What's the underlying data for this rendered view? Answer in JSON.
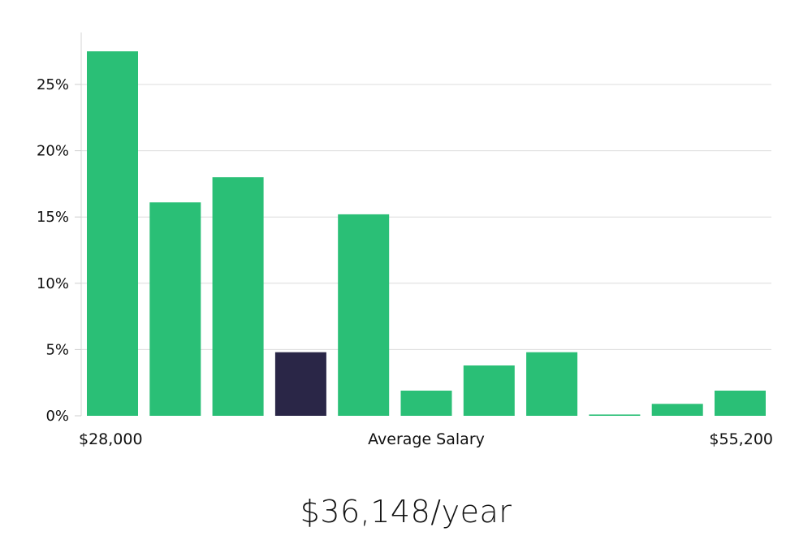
{
  "chart_data": {
    "type": "bar",
    "categories": [
      "1",
      "2",
      "3",
      "4",
      "5",
      "6",
      "7",
      "8",
      "9",
      "10",
      "11"
    ],
    "values": [
      27.5,
      16.1,
      18.0,
      4.8,
      15.2,
      1.9,
      3.8,
      4.8,
      0.1,
      0.9,
      1.9
    ],
    "highlight_index": 3,
    "ylim": [
      0,
      28
    ],
    "yticks": [
      0,
      5,
      10,
      15,
      20,
      25
    ],
    "ytick_suffix": "%",
    "x_min_label": "$28,000",
    "x_max_label": "$55,200",
    "xlabel": "Average Salary",
    "grid": true,
    "colors": {
      "bar": "#2abf76",
      "highlight": "#2a2647",
      "grid": "#dcdcdc",
      "axis": "#d6d6d6"
    }
  },
  "salary_text": "$36,148/year"
}
